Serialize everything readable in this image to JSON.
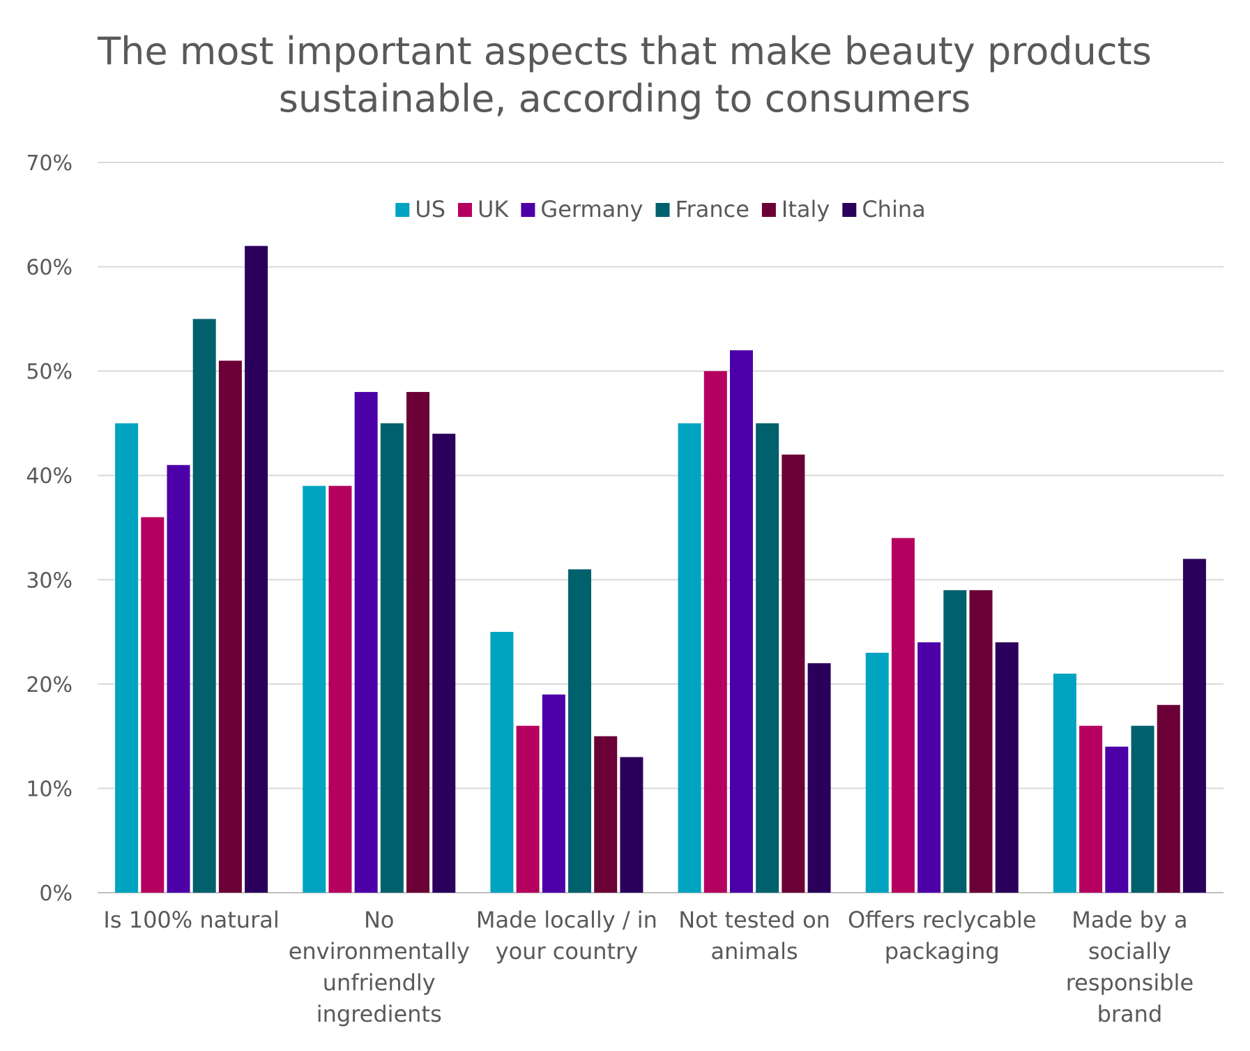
{
  "chart_data": {
    "type": "bar",
    "title_lines": [
      "The most important aspects that make beauty products",
      "sustainable, according to consumers"
    ],
    "categories": [
      "Is 100% natural",
      "No environmentally unfriendly ingredients",
      "Made locally / in your country",
      "Not tested on animals",
      "Offers reclycable packaging",
      "Made by a socially responsible brand"
    ],
    "category_label_lines": [
      [
        "Is 100% natural"
      ],
      [
        "No",
        "environmentally",
        "unfriendly",
        "ingredients"
      ],
      [
        "Made locally / in",
        "your country"
      ],
      [
        "Not tested on",
        "animals"
      ],
      [
        "Offers reclycable",
        "packaging"
      ],
      [
        "Made by a",
        "socially",
        "responsible",
        "brand"
      ]
    ],
    "series": [
      {
        "name": "US",
        "color": "#00a4c0",
        "values": [
          45,
          39,
          25,
          45,
          23,
          21
        ]
      },
      {
        "name": "UK",
        "color": "#b5005f",
        "values": [
          36,
          39,
          16,
          50,
          34,
          16
        ]
      },
      {
        "name": "Germany",
        "color": "#4c00a8",
        "values": [
          41,
          48,
          19,
          52,
          24,
          14
        ]
      },
      {
        "name": "France",
        "color": "#00606c",
        "values": [
          55,
          45,
          31,
          45,
          29,
          16
        ]
      },
      {
        "name": "Italy",
        "color": "#6b0036",
        "values": [
          51,
          48,
          15,
          42,
          29,
          18
        ]
      },
      {
        "name": "China",
        "color": "#2b005c",
        "values": [
          62,
          44,
          13,
          22,
          24,
          32
        ]
      }
    ],
    "y_ticks": [
      "0%",
      "10%",
      "20%",
      "30%",
      "40%",
      "50%",
      "60%",
      "70%"
    ],
    "ylim": [
      0,
      70
    ],
    "grid": true,
    "legend_position": "top-center"
  }
}
